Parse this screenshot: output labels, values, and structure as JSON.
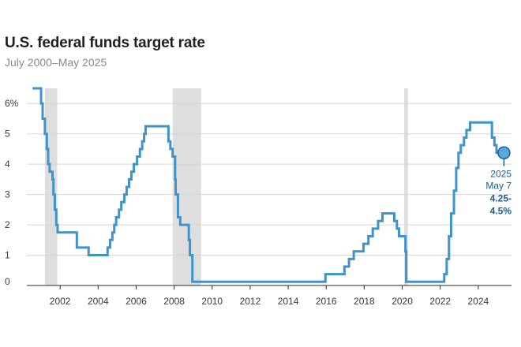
{
  "chart_data": {
    "type": "line",
    "title": "U.S. federal funds target rate",
    "subtitle": "July 2000–May 2025",
    "xlabel": "",
    "ylabel": "",
    "xlim": [
      2000.25,
      2025.75
    ],
    "ylim": [
      0,
      6.5
    ],
    "grid": true,
    "line_color": "#3f93cb",
    "recession_color": "#dedede",
    "annotation_color": "#1d5e8e",
    "x_ticks": [
      {
        "value": 2002,
        "label": "2002"
      },
      {
        "value": 2004,
        "label": "2004"
      },
      {
        "value": 2006,
        "label": "2006"
      },
      {
        "value": 2008,
        "label": "2008"
      },
      {
        "value": 2010,
        "label": "2010"
      },
      {
        "value": 2012,
        "label": "2012"
      },
      {
        "value": 2014,
        "label": "2014"
      },
      {
        "value": 2016,
        "label": "2016"
      },
      {
        "value": 2018,
        "label": "2018"
      },
      {
        "value": 2020,
        "label": "2020"
      },
      {
        "value": 2022,
        "label": "2022"
      },
      {
        "value": 2024,
        "label": "2024"
      }
    ],
    "y_ticks": [
      {
        "value": 0.125,
        "label": "0"
      },
      {
        "value": 1,
        "label": "1"
      },
      {
        "value": 2,
        "label": "2"
      },
      {
        "value": 3,
        "label": "3"
      },
      {
        "value": 4,
        "label": "4"
      },
      {
        "value": 5,
        "label": "5"
      },
      {
        "value": 6,
        "label": "6%"
      }
    ],
    "recessions": [
      {
        "start": 2001.2,
        "end": 2001.85
      },
      {
        "start": 2007.92,
        "end": 2009.42
      },
      {
        "start": 2020.1,
        "end": 2020.3
      }
    ],
    "series": [
      {
        "points": [
          [
            2000.55,
            6.5
          ],
          [
            2001.0,
            6.5
          ],
          [
            2001.0,
            6.0
          ],
          [
            2001.08,
            6.0
          ],
          [
            2001.08,
            5.5
          ],
          [
            2001.2,
            5.5
          ],
          [
            2001.2,
            5.0
          ],
          [
            2001.3,
            5.0
          ],
          [
            2001.3,
            4.5
          ],
          [
            2001.37,
            4.5
          ],
          [
            2001.37,
            4.0
          ],
          [
            2001.45,
            4.0
          ],
          [
            2001.45,
            3.75
          ],
          [
            2001.6,
            3.75
          ],
          [
            2001.6,
            3.5
          ],
          [
            2001.65,
            3.5
          ],
          [
            2001.65,
            3.0
          ],
          [
            2001.72,
            3.0
          ],
          [
            2001.72,
            2.5
          ],
          [
            2001.8,
            2.5
          ],
          [
            2001.8,
            2.0
          ],
          [
            2001.87,
            2.0
          ],
          [
            2001.87,
            1.75
          ],
          [
            2002.88,
            1.75
          ],
          [
            2002.88,
            1.25
          ],
          [
            2003.5,
            1.25
          ],
          [
            2003.5,
            1.0
          ],
          [
            2004.5,
            1.0
          ],
          [
            2004.5,
            1.25
          ],
          [
            2004.63,
            1.25
          ],
          [
            2004.63,
            1.5
          ],
          [
            2004.75,
            1.5
          ],
          [
            2004.75,
            1.75
          ],
          [
            2004.85,
            1.75
          ],
          [
            2004.85,
            2.0
          ],
          [
            2004.95,
            2.0
          ],
          [
            2004.95,
            2.25
          ],
          [
            2005.1,
            2.25
          ],
          [
            2005.1,
            2.5
          ],
          [
            2005.22,
            2.5
          ],
          [
            2005.22,
            2.75
          ],
          [
            2005.38,
            2.75
          ],
          [
            2005.38,
            3.0
          ],
          [
            2005.5,
            3.0
          ],
          [
            2005.5,
            3.25
          ],
          [
            2005.63,
            3.25
          ],
          [
            2005.63,
            3.5
          ],
          [
            2005.75,
            3.5
          ],
          [
            2005.75,
            3.75
          ],
          [
            2005.88,
            3.75
          ],
          [
            2005.88,
            4.0
          ],
          [
            2006.05,
            4.0
          ],
          [
            2006.05,
            4.25
          ],
          [
            2006.2,
            4.25
          ],
          [
            2006.2,
            4.5
          ],
          [
            2006.32,
            4.5
          ],
          [
            2006.32,
            4.75
          ],
          [
            2006.42,
            4.75
          ],
          [
            2006.42,
            5.0
          ],
          [
            2006.5,
            5.0
          ],
          [
            2006.5,
            5.25
          ],
          [
            2007.7,
            5.25
          ],
          [
            2007.7,
            4.75
          ],
          [
            2007.8,
            4.75
          ],
          [
            2007.8,
            4.5
          ],
          [
            2007.92,
            4.5
          ],
          [
            2007.92,
            4.25
          ],
          [
            2008.05,
            4.25
          ],
          [
            2008.05,
            3.5
          ],
          [
            2008.08,
            3.5
          ],
          [
            2008.08,
            3.0
          ],
          [
            2008.2,
            3.0
          ],
          [
            2008.2,
            2.25
          ],
          [
            2008.32,
            2.25
          ],
          [
            2008.32,
            2.0
          ],
          [
            2008.77,
            2.0
          ],
          [
            2008.77,
            1.5
          ],
          [
            2008.83,
            1.5
          ],
          [
            2008.83,
            1.0
          ],
          [
            2008.96,
            1.0
          ],
          [
            2008.96,
            0.125
          ],
          [
            2015.96,
            0.125
          ],
          [
            2015.96,
            0.375
          ],
          [
            2016.96,
            0.375
          ],
          [
            2016.96,
            0.625
          ],
          [
            2017.2,
            0.625
          ],
          [
            2017.2,
            0.875
          ],
          [
            2017.45,
            0.875
          ],
          [
            2017.45,
            1.125
          ],
          [
            2017.96,
            1.125
          ],
          [
            2017.96,
            1.375
          ],
          [
            2018.22,
            1.375
          ],
          [
            2018.22,
            1.625
          ],
          [
            2018.45,
            1.625
          ],
          [
            2018.45,
            1.875
          ],
          [
            2018.73,
            1.875
          ],
          [
            2018.73,
            2.125
          ],
          [
            2018.96,
            2.125
          ],
          [
            2018.96,
            2.375
          ],
          [
            2019.58,
            2.375
          ],
          [
            2019.58,
            2.125
          ],
          [
            2019.72,
            2.125
          ],
          [
            2019.72,
            1.875
          ],
          [
            2019.83,
            1.875
          ],
          [
            2019.83,
            1.625
          ],
          [
            2020.17,
            1.625
          ],
          [
            2020.17,
            1.125
          ],
          [
            2020.21,
            1.125
          ],
          [
            2020.21,
            0.125
          ],
          [
            2022.21,
            0.125
          ],
          [
            2022.21,
            0.375
          ],
          [
            2022.34,
            0.375
          ],
          [
            2022.34,
            0.875
          ],
          [
            2022.46,
            0.875
          ],
          [
            2022.46,
            1.625
          ],
          [
            2022.57,
            1.625
          ],
          [
            2022.57,
            2.375
          ],
          [
            2022.72,
            2.375
          ],
          [
            2022.72,
            3.125
          ],
          [
            2022.84,
            3.125
          ],
          [
            2022.84,
            3.875
          ],
          [
            2022.96,
            3.875
          ],
          [
            2022.96,
            4.375
          ],
          [
            2023.08,
            4.375
          ],
          [
            2023.08,
            4.625
          ],
          [
            2023.25,
            4.625
          ],
          [
            2023.25,
            4.875
          ],
          [
            2023.38,
            4.875
          ],
          [
            2023.38,
            5.125
          ],
          [
            2023.57,
            5.125
          ],
          [
            2023.57,
            5.375
          ],
          [
            2024.72,
            5.375
          ],
          [
            2024.72,
            4.875
          ],
          [
            2024.85,
            4.875
          ],
          [
            2024.85,
            4.625
          ],
          [
            2024.96,
            4.625
          ],
          [
            2024.96,
            4.375
          ],
          [
            2025.35,
            4.375
          ]
        ]
      }
    ],
    "annotation": {
      "x": 2025.35,
      "y": 4.375,
      "year": "2025",
      "date": "May 7",
      "value_line1": "4.25-",
      "value_line2": "4.5%"
    }
  }
}
